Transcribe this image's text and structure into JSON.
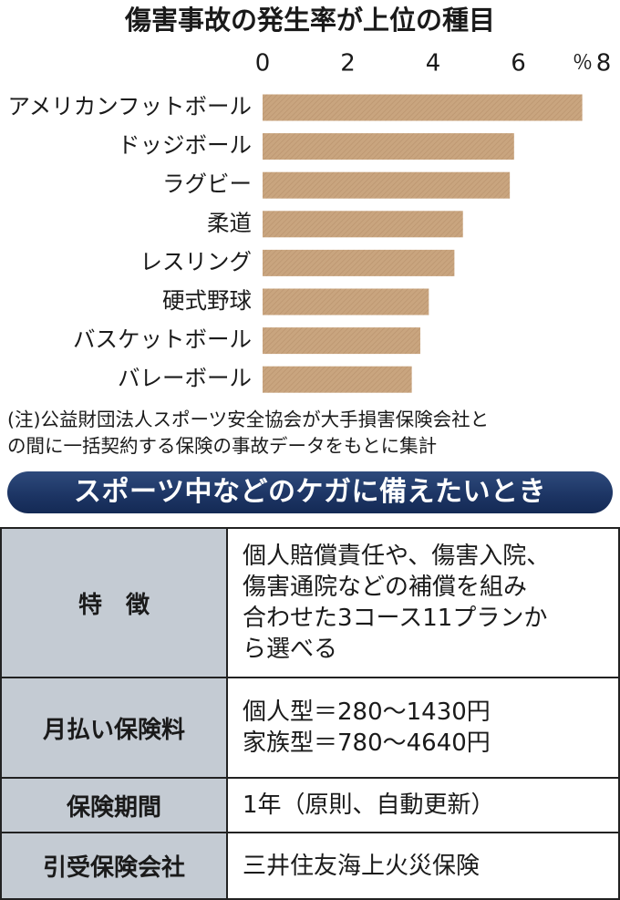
{
  "chart_data": {
    "type": "barh",
    "title": "傷害事故の発生率が上位の種目",
    "categories": [
      "アメリカンフットボール",
      "ドッジボール",
      "ラグビー",
      "柔道",
      "レスリング",
      "硬式野球",
      "バスケットボール",
      "バレーボール"
    ],
    "values": [
      7.5,
      5.9,
      5.8,
      4.7,
      4.5,
      3.9,
      3.7,
      3.5
    ],
    "color": "#c9a57f",
    "x_unit": "％",
    "xlim": [
      0,
      8
    ],
    "xticks": [
      0,
      2,
      4,
      6,
      8
    ],
    "grid": false
  },
  "note": [
    "(注)公益財団法人スポーツ安全協会が大手損害保険会社と",
    "の間に一括契約する保険の事故データをもとに集計"
  ],
  "banner": "スポーツ中などのケガに備えたいとき",
  "table": {
    "rows": [
      [
        "特　徴",
        [
          "個人賠償責任や、傷害入院、",
          "傷害通院などの補償を組み",
          "合わせた3コース11プランか",
          "ら選べる"
        ]
      ],
      [
        "月払い保険料",
        [
          "個人型＝280～1430円",
          "家族型＝780～4640円"
        ]
      ],
      [
        "保険期間",
        [
          "1年（原則、自動更新）"
        ]
      ],
      [
        "引受保険会社",
        [
          "三井住友海上火災保険"
        ]
      ]
    ]
  }
}
